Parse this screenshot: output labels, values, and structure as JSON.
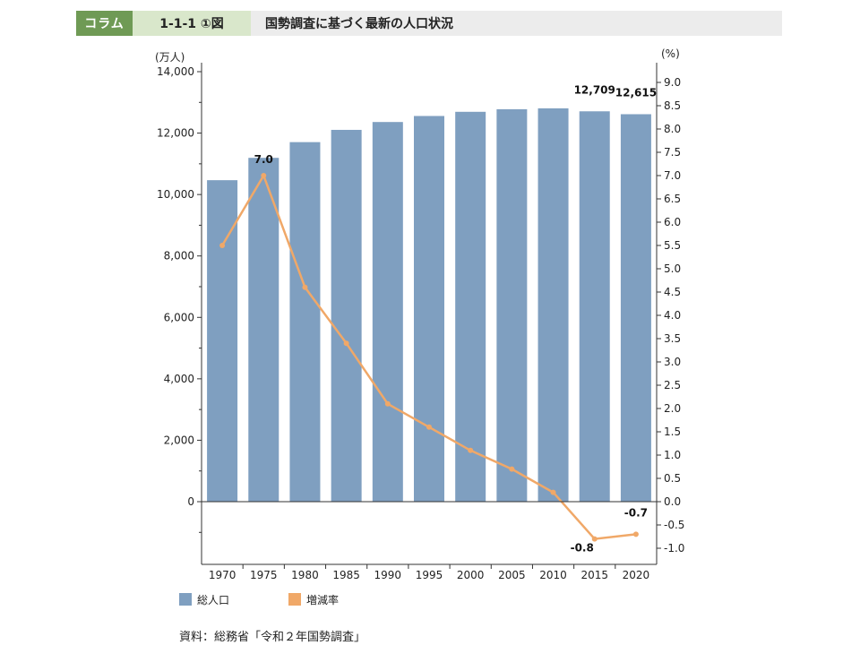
{
  "header": {
    "tag": "コラム",
    "figure_number": "1-1-1 ①図",
    "title": "国勢調査に基づく最新の人口状況"
  },
  "source": "資料：総務省「令和２年国勢調査」",
  "colors": {
    "bar": "#7f9fc0",
    "line": "#f0a868",
    "tag_bg": "#6f9a55",
    "num_bg": "#d9e7cb"
  },
  "chart_data": {
    "type": "bar",
    "categories": [
      "1970",
      "1975",
      "1980",
      "1985",
      "1990",
      "1995",
      "2000",
      "2005",
      "2010",
      "2015",
      "2020"
    ],
    "series": [
      {
        "name": "総人口",
        "type": "bar",
        "axis": "left",
        "values": [
          10467,
          11194,
          11706,
          12105,
          12361,
          12557,
          12693,
          12777,
          12806,
          12709,
          12615
        ]
      },
      {
        "name": "増減率",
        "type": "line",
        "axis": "right",
        "values": [
          5.5,
          7.0,
          4.6,
          3.4,
          2.1,
          1.6,
          1.1,
          0.7,
          0.2,
          -0.8,
          -0.7
        ]
      }
    ],
    "left_axis": {
      "unit": "(万人)",
      "min": -2000,
      "max": 14000,
      "ticks": [
        0,
        2000,
        4000,
        6000,
        8000,
        10000,
        12000,
        14000
      ],
      "tick_labels": [
        "0",
        "2,000",
        "4,000",
        "6,000",
        "8,000",
        "10,000",
        "12,000",
        "14,000"
      ]
    },
    "right_axis": {
      "unit": "(%)",
      "min": -1.3,
      "max": 9.2,
      "ticks": [
        -1.0,
        -0.5,
        0.0,
        0.5,
        1.0,
        1.5,
        2.0,
        2.5,
        3.0,
        3.5,
        4.0,
        4.5,
        5.0,
        5.5,
        6.0,
        6.5,
        7.0,
        7.5,
        8.0,
        8.5,
        9.0
      ],
      "tick_labels": [
        "-1.0",
        "-0.5",
        "0.0",
        "0.5",
        "1.0",
        "1.5",
        "2.0",
        "2.5",
        "3.0",
        "3.5",
        "4.0",
        "4.5",
        "5.0",
        "5.5",
        "6.0",
        "6.5",
        "7.0",
        "7.5",
        "8.0",
        "8.5",
        "9.0"
      ]
    },
    "annotations": [
      {
        "series": "総人口",
        "index": 9,
        "text": "12,709"
      },
      {
        "series": "総人口",
        "index": 10,
        "text": "12,615"
      },
      {
        "series": "増減率",
        "index": 1,
        "text": "7.0"
      },
      {
        "series": "増減率",
        "index": 9,
        "text": "-0.8"
      },
      {
        "series": "増減率",
        "index": 10,
        "text": "-0.7"
      }
    ],
    "legend": [
      "総人口",
      "増減率"
    ],
    "legend_position": "bottom-left"
  }
}
